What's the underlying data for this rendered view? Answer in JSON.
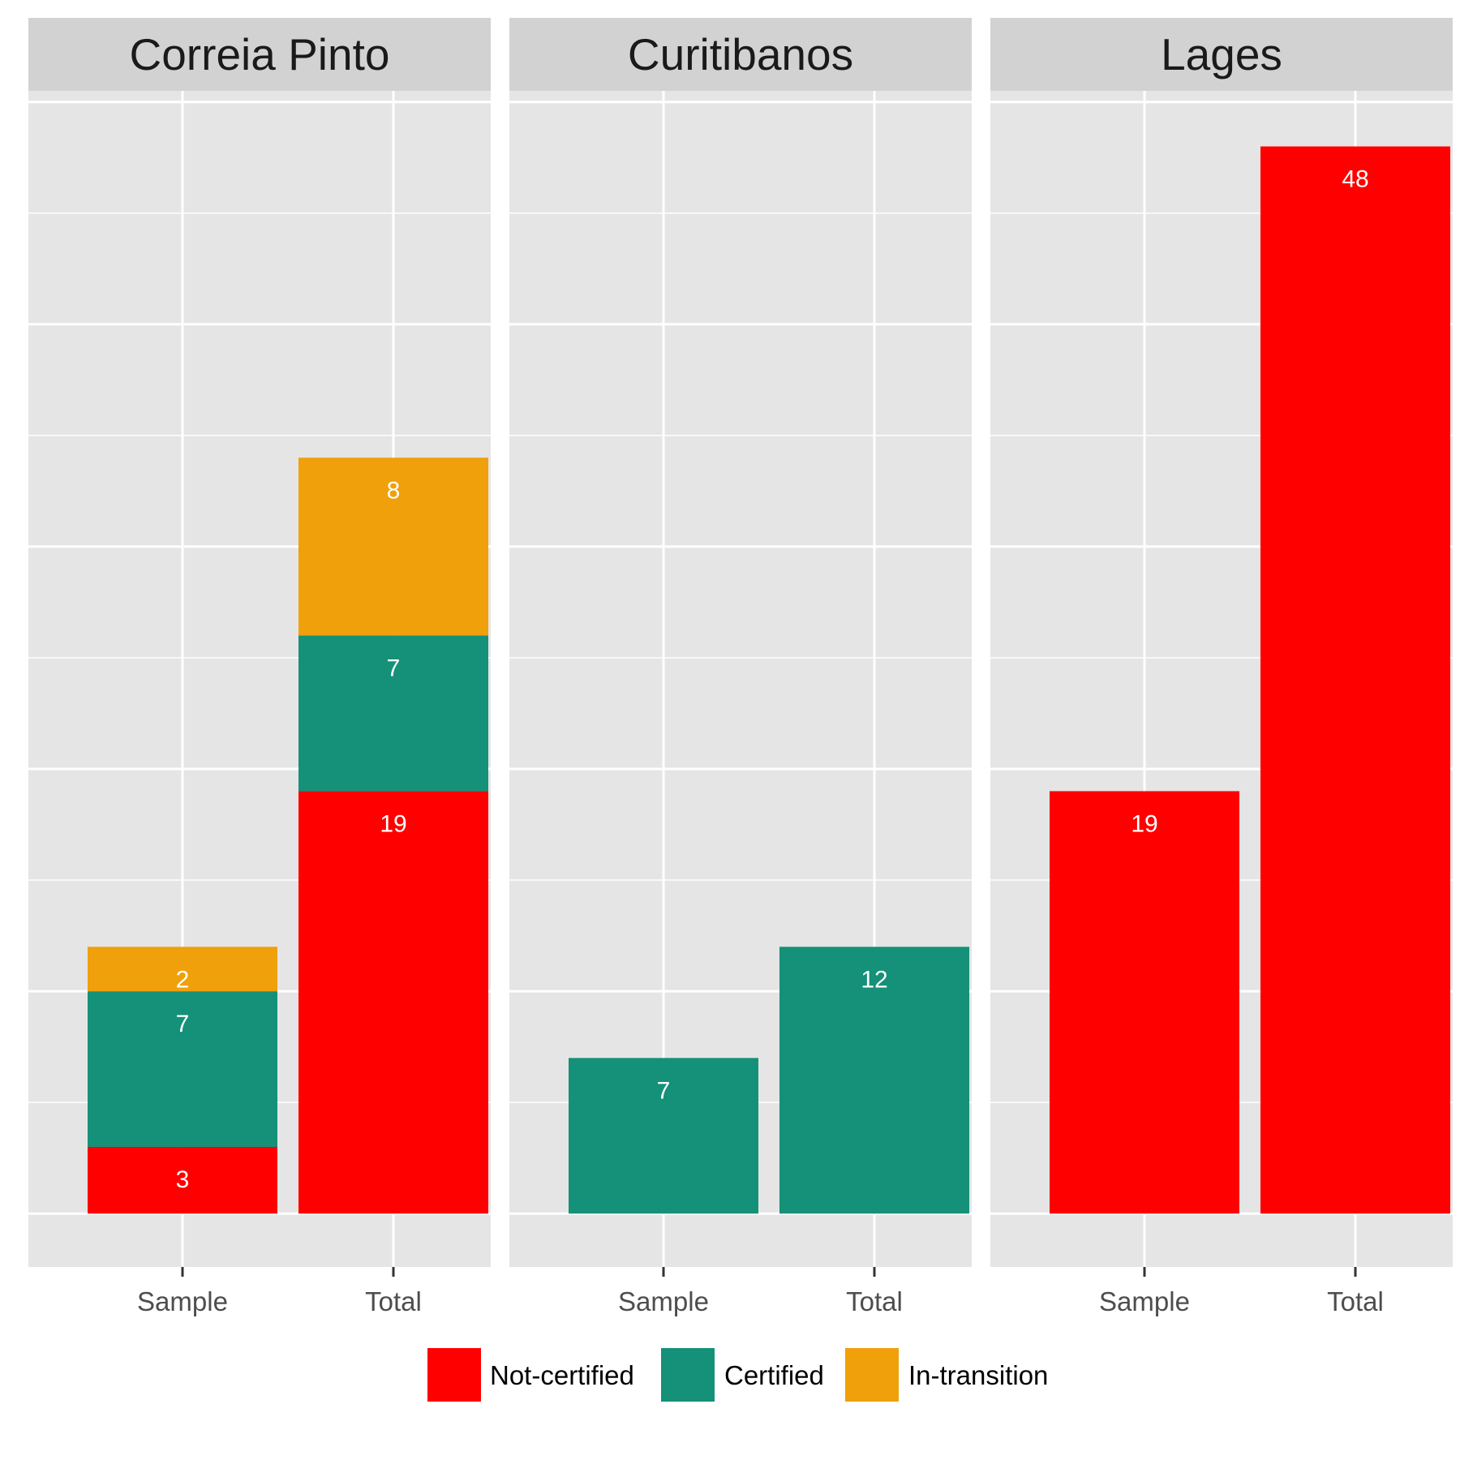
{
  "chart_data": {
    "type": "bar",
    "stacked": true,
    "faceted_by": "facet",
    "facets": [
      "Correia Pinto",
      "Curitibanos",
      "Lages"
    ],
    "categories": [
      "Sample",
      "Total"
    ],
    "series": [
      {
        "name": "Not-certified",
        "color": "#FF0000",
        "values": {
          "Correia Pinto": [
            3,
            19
          ],
          "Curitibanos": [
            0,
            0
          ],
          "Lages": [
            19,
            48
          ]
        }
      },
      {
        "name": "Certified",
        "color": "#149178",
        "values": {
          "Correia Pinto": [
            7,
            7
          ],
          "Curitibanos": [
            7,
            12
          ],
          "Lages": [
            0,
            0
          ]
        }
      },
      {
        "name": "In-transition",
        "color": "#EFA00B",
        "values": {
          "Correia Pinto": [
            2,
            8
          ],
          "Curitibanos": [
            0,
            0
          ],
          "Lages": [
            0,
            0
          ]
        }
      }
    ],
    "ylim": [
      -2.4,
      50.5
    ],
    "y_axis_labels_shown": false,
    "grid": true,
    "legend_position": "bottom",
    "colors": {
      "panel_bg": "#E5E5E5",
      "strip_bg": "#D2D2D2",
      "grid": "#FFFFFF",
      "bar_label": "#FFFFFF"
    }
  }
}
